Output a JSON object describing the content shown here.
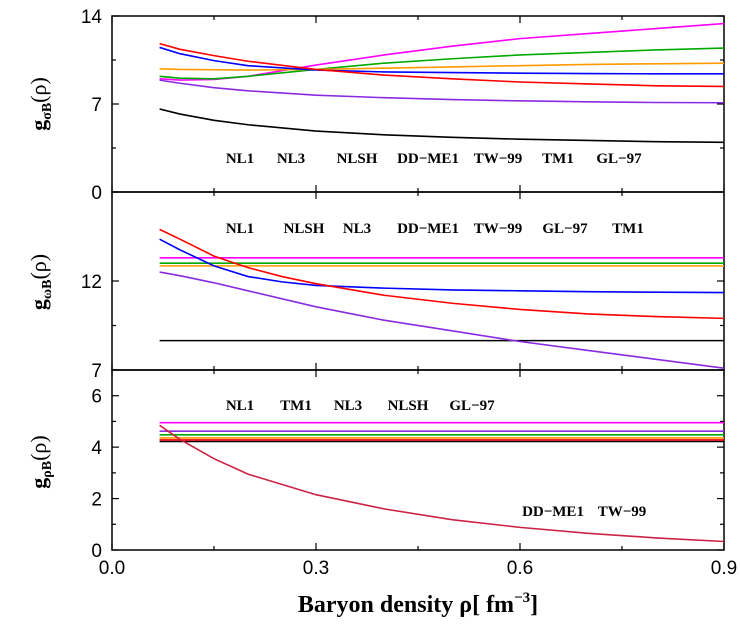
{
  "colors": {
    "NL1": "#000000",
    "NL3": "#ff00ff",
    "NLSH": "#00aa00",
    "DD-ME1": "#ff9900",
    "TW-99": "#0000ff",
    "TM1": "#8a2be2",
    "GL-97": "#ff0000",
    "lower_dd_tw": "#cc2244"
  },
  "chart_data": [
    {
      "type": "line",
      "panel": "top",
      "ylabel": {
        "main": "g",
        "sub": "σB",
        "arg": "(ρ)"
      },
      "xlim": [
        0.0,
        0.9
      ],
      "ylim": [
        0,
        14
      ],
      "yticks": [
        0,
        7,
        14
      ],
      "key_labels": [
        "NL1",
        "NL3",
        "NLSH",
        "DD−ME1",
        "TW−99",
        "TM1",
        "GL−97"
      ],
      "series": [
        {
          "name": "NL1",
          "color_key": "NL1",
          "x": [
            0.07,
            0.1,
            0.15,
            0.2,
            0.3,
            0.4,
            0.5,
            0.6,
            0.7,
            0.8,
            0.9
          ],
          "y": [
            6.6,
            6.2,
            5.7,
            5.35,
            4.85,
            4.55,
            4.35,
            4.2,
            4.1,
            4.0,
            3.95
          ]
        },
        {
          "name": "NL3",
          "color_key": "NL3",
          "x": [
            0.07,
            0.1,
            0.15,
            0.2,
            0.3,
            0.4,
            0.5,
            0.6,
            0.7,
            0.8,
            0.9
          ],
          "y": [
            9.0,
            8.9,
            8.95,
            9.2,
            10.1,
            10.9,
            11.6,
            12.2,
            12.6,
            13.0,
            13.4
          ]
        },
        {
          "name": "NLSH",
          "color_key": "NLSH",
          "x": [
            0.07,
            0.1,
            0.15,
            0.2,
            0.3,
            0.4,
            0.5,
            0.6,
            0.7,
            0.8,
            0.9
          ],
          "y": [
            9.2,
            9.05,
            9.0,
            9.2,
            9.75,
            10.25,
            10.6,
            10.9,
            11.1,
            11.3,
            11.45
          ]
        },
        {
          "name": "DD−ME1",
          "color_key": "DD-ME1",
          "x": [
            0.07,
            0.1,
            0.2,
            0.3,
            0.4,
            0.5,
            0.6,
            0.7,
            0.8,
            0.9
          ],
          "y": [
            9.8,
            9.75,
            9.7,
            9.75,
            9.85,
            9.95,
            10.05,
            10.15,
            10.2,
            10.25
          ]
        },
        {
          "name": "TW−99",
          "color_key": "TW-99",
          "x": [
            0.07,
            0.1,
            0.15,
            0.2,
            0.3,
            0.4,
            0.5,
            0.6,
            0.7,
            0.8,
            0.9
          ],
          "y": [
            11.5,
            11.0,
            10.45,
            10.05,
            9.7,
            9.55,
            9.5,
            9.45,
            9.42,
            9.4,
            9.4
          ]
        },
        {
          "name": "TM1",
          "color_key": "TM1",
          "x": [
            0.07,
            0.1,
            0.15,
            0.2,
            0.3,
            0.4,
            0.5,
            0.6,
            0.7,
            0.8,
            0.9
          ],
          "y": [
            8.9,
            8.65,
            8.3,
            8.05,
            7.7,
            7.5,
            7.35,
            7.25,
            7.17,
            7.12,
            7.1
          ]
        },
        {
          "name": "GL−97",
          "color_key": "GL-97",
          "x": [
            0.07,
            0.1,
            0.15,
            0.2,
            0.3,
            0.4,
            0.5,
            0.6,
            0.7,
            0.8,
            0.9
          ],
          "y": [
            11.8,
            11.35,
            10.85,
            10.4,
            9.75,
            9.3,
            9.0,
            8.75,
            8.6,
            8.45,
            8.4
          ]
        }
      ]
    },
    {
      "type": "line",
      "panel": "middle",
      "ylabel": {
        "main": "g",
        "sub": "ωB",
        "arg": "(ρ)"
      },
      "xlim": [
        0.0,
        0.9
      ],
      "ylim": [
        7,
        17
      ],
      "yticks": [
        7,
        12
      ],
      "key_labels": [
        "NL1",
        "NLSH",
        "NL3",
        "DD−ME1",
        "TW−99",
        "GL−97",
        "TM1"
      ],
      "series": [
        {
          "name": "NL1",
          "color_key": "NL1",
          "x": [
            0.07,
            0.9
          ],
          "y": [
            8.65,
            8.65
          ]
        },
        {
          "name": "NL3",
          "color_key": "NL3",
          "x": [
            0.07,
            0.9
          ],
          "y": [
            13.3,
            13.3
          ]
        },
        {
          "name": "NLSH",
          "color_key": "NLSH",
          "x": [
            0.07,
            0.9
          ],
          "y": [
            13.0,
            13.0
          ]
        },
        {
          "name": "DD−ME1",
          "color_key": "DD-ME1",
          "x": [
            0.07,
            0.9
          ],
          "y": [
            12.85,
            12.85
          ]
        },
        {
          "name": "TW−99",
          "color_key": "TW-99",
          "x": [
            0.07,
            0.1,
            0.15,
            0.2,
            0.25,
            0.3,
            0.4,
            0.5,
            0.6,
            0.7,
            0.8,
            0.9
          ],
          "y": [
            14.35,
            13.75,
            12.85,
            12.25,
            11.95,
            11.75,
            11.6,
            11.5,
            11.45,
            11.4,
            11.37,
            11.35
          ]
        },
        {
          "name": "TM1",
          "color_key": "TM1",
          "x": [
            0.07,
            0.1,
            0.15,
            0.2,
            0.3,
            0.4,
            0.5,
            0.6,
            0.7,
            0.8,
            0.9
          ],
          "y": [
            12.5,
            12.3,
            11.9,
            11.45,
            10.55,
            9.8,
            9.2,
            8.6,
            8.1,
            7.6,
            7.1
          ]
        },
        {
          "name": "GL−97",
          "color_key": "GL-97",
          "x": [
            0.07,
            0.1,
            0.15,
            0.2,
            0.25,
            0.3,
            0.4,
            0.5,
            0.6,
            0.7,
            0.8,
            0.9
          ],
          "y": [
            14.9,
            14.35,
            13.4,
            12.75,
            12.25,
            11.85,
            11.2,
            10.75,
            10.4,
            10.15,
            10.0,
            9.9
          ]
        }
      ]
    },
    {
      "type": "line",
      "panel": "bottom",
      "ylabel": {
        "main": "g",
        "sub": "ρB",
        "arg": "(ρ)"
      },
      "xlim": [
        0.0,
        0.9
      ],
      "ylim": [
        0,
        7
      ],
      "yticks": [
        0,
        2,
        4,
        6
      ],
      "xticks": [
        "0.0",
        "0.3",
        "0.6",
        "0.9"
      ],
      "xtick_values": [
        0.0,
        0.3,
        0.6,
        0.9
      ],
      "key_labels": [
        "NL1",
        "TM1",
        "NL3",
        "NLSH",
        "GL−97"
      ],
      "key_labels_lower": [
        "DD−ME1",
        "TW−99"
      ],
      "xlabel": {
        "main": "Baryon density ρ[ fm",
        "sup": "−3",
        "end": "]"
      },
      "series": [
        {
          "name": "NL3",
          "color_key": "NL3",
          "x": [
            0.07,
            0.9
          ],
          "y": [
            4.95,
            4.95
          ]
        },
        {
          "name": "TM1",
          "color_key": "TM1",
          "x": [
            0.07,
            0.9
          ],
          "y": [
            4.62,
            4.62
          ]
        },
        {
          "name": "NLSH",
          "color_key": "NLSH",
          "x": [
            0.07,
            0.9
          ],
          "y": [
            4.48,
            4.48
          ]
        },
        {
          "name": "DD−ME1",
          "color_key": "DD-ME1",
          "x": [
            0.07,
            0.9
          ],
          "y": [
            4.36,
            4.36
          ]
        },
        {
          "name": "NL1",
          "color_key": "NL1",
          "x": [
            0.07,
            0.9
          ],
          "y": [
            4.22,
            4.22
          ]
        },
        {
          "name": "GL−97",
          "color_key": "GL-97",
          "x": [
            0.07,
            0.9
          ],
          "y": [
            4.28,
            4.28
          ]
        },
        {
          "name": "DD−ME1 / TW−99",
          "color_key": "lower_dd_tw",
          "x": [
            0.07,
            0.1,
            0.15,
            0.2,
            0.3,
            0.4,
            0.5,
            0.6,
            0.7,
            0.8,
            0.9
          ],
          "y": [
            4.85,
            4.3,
            3.55,
            2.95,
            2.15,
            1.6,
            1.18,
            0.88,
            0.65,
            0.47,
            0.33
          ]
        }
      ]
    }
  ]
}
